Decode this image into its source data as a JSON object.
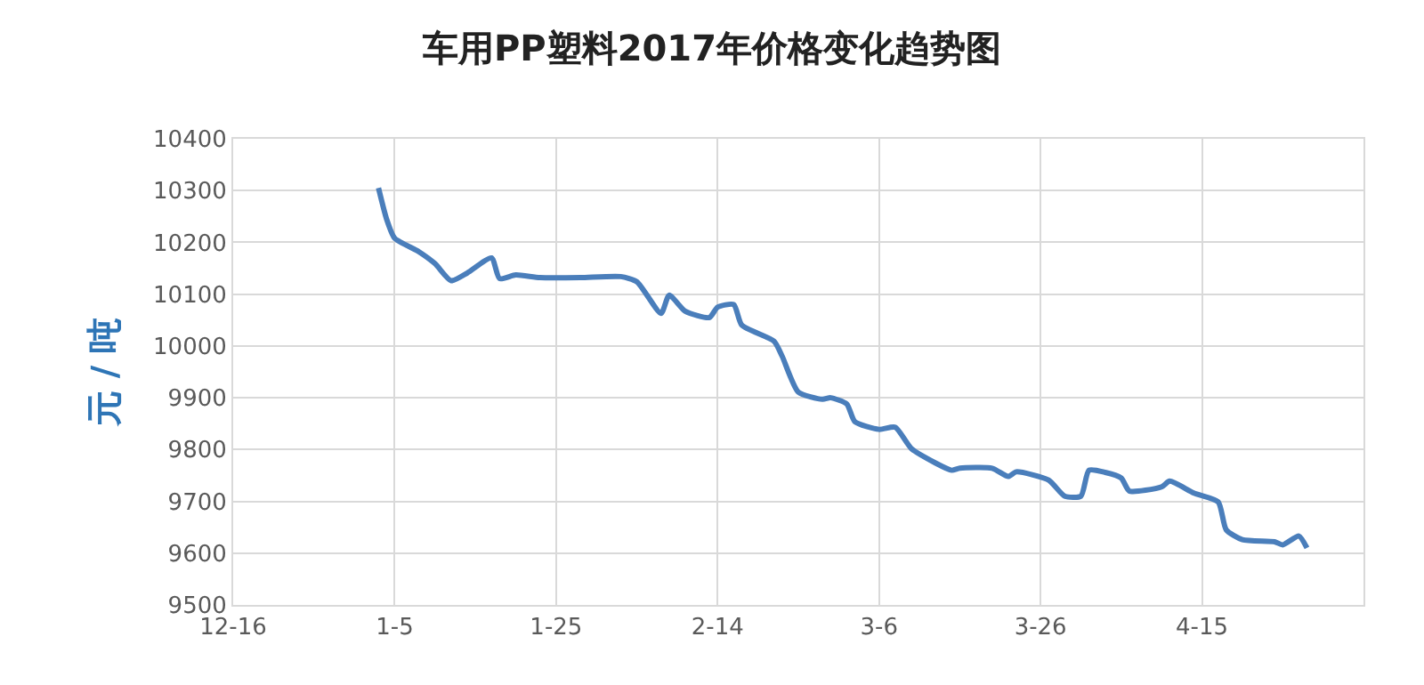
{
  "chart_data": {
    "type": "line",
    "title": "车用PP塑料2017年价格变化趋势图",
    "ylabel": "元 / 吨",
    "x": [
      "2017-01-03",
      "2017-01-04",
      "2017-01-05",
      "2017-01-08",
      "2017-01-10",
      "2017-01-12",
      "2017-01-14",
      "2017-01-17",
      "2017-01-18",
      "2017-01-20",
      "2017-01-23",
      "2017-01-28",
      "2017-02-02",
      "2017-02-04",
      "2017-02-07",
      "2017-02-08",
      "2017-02-10",
      "2017-02-13",
      "2017-02-14",
      "2017-02-16",
      "2017-02-17",
      "2017-02-21",
      "2017-02-22",
      "2017-02-24",
      "2017-02-27",
      "2017-02-28",
      "2017-03-02",
      "2017-03-03",
      "2017-03-06",
      "2017-03-08",
      "2017-03-10",
      "2017-03-13",
      "2017-03-15",
      "2017-03-16",
      "2017-03-20",
      "2017-03-22",
      "2017-03-23",
      "2017-03-27",
      "2017-03-29",
      "2017-03-31",
      "2017-04-01",
      "2017-04-03",
      "2017-04-05",
      "2017-04-06",
      "2017-04-10",
      "2017-04-11",
      "2017-04-14",
      "2017-04-17",
      "2017-04-18",
      "2017-04-20",
      "2017-04-24",
      "2017-04-25",
      "2017-04-27",
      "2017-04-28"
    ],
    "series": [
      {
        "color": "#4a7ebb",
        "values": [
          10305,
          10245,
          10208,
          10182,
          10159,
          10126,
          10141,
          10170,
          10130,
          10137,
          10132,
          10132,
          10134,
          10124,
          10063,
          10098,
          10067,
          10055,
          10075,
          10080,
          10040,
          10009,
          9980,
          9911,
          9897,
          9900,
          9888,
          9854,
          9839,
          9843,
          9802,
          9774,
          9760,
          9764,
          9764,
          9748,
          9757,
          9741,
          9710,
          9710,
          9760,
          9756,
          9745,
          9720,
          9728,
          9739,
          9716,
          9699,
          9645,
          9626,
          9622,
          9616,
          9633,
          9610
        ]
      }
    ],
    "xlim": [
      "2016-12-16",
      "2017-05-05"
    ],
    "xticks": [
      {
        "value": "2016-12-16",
        "label": "12-16"
      },
      {
        "value": "2017-01-05",
        "label": "1-5"
      },
      {
        "value": "2017-01-25",
        "label": "1-25"
      },
      {
        "value": "2017-02-14",
        "label": "2-14"
      },
      {
        "value": "2017-03-06",
        "label": "3-6"
      },
      {
        "value": "2017-03-26",
        "label": "3-26"
      },
      {
        "value": "2017-04-15",
        "label": "4-15"
      }
    ],
    "ylim": [
      9500,
      10400
    ],
    "yticks": [
      9500,
      9600,
      9700,
      9800,
      9900,
      10000,
      10100,
      10200,
      10300,
      10400
    ],
    "grid": true,
    "legend": false,
    "marker": "none",
    "line_style": "solid"
  }
}
